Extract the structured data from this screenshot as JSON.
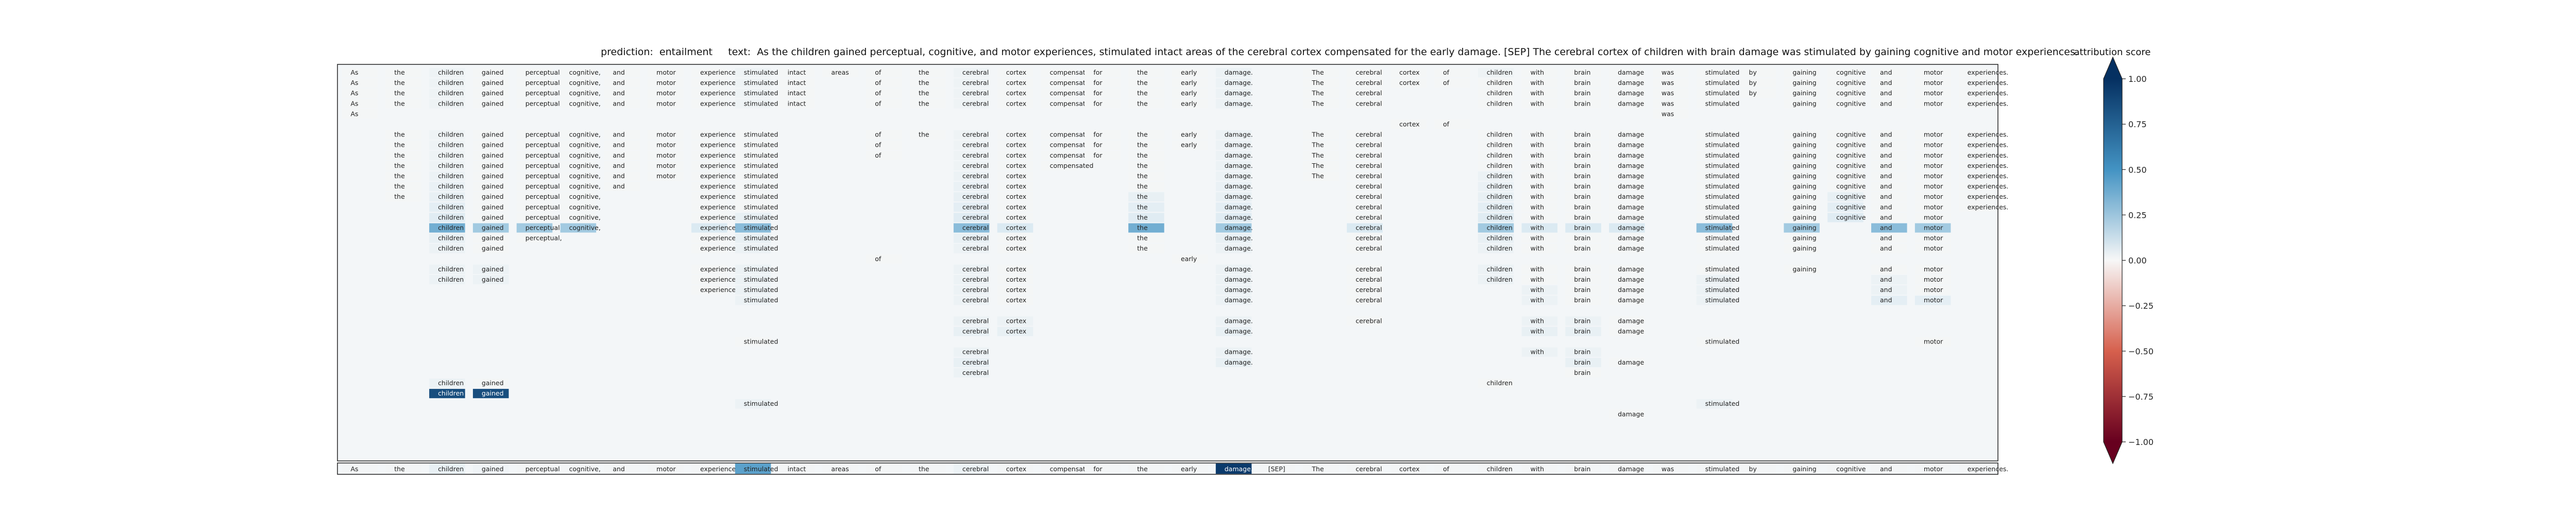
{
  "header": {
    "prediction": "prediction:  entailment",
    "text_prefix": "text:",
    "text": "As the children gained perceptual, cognitive, and motor experiences, stimulated intact areas of the cerebral cortex compensated for the early damage. [SEP] The cerebral cortex of children with brain damage was stimulated by gaining cognitive and motor experiences."
  },
  "colorbar": {
    "title": "attribution score",
    "ticks": [
      "1.00",
      "0.75",
      "0.50",
      "0.25",
      "0.00",
      "−0.25",
      "−0.50",
      "−0.75",
      "−1.00"
    ],
    "tick_values": [
      1.0,
      0.75,
      0.5,
      0.25,
      0.0,
      -0.25,
      -0.5,
      -0.75,
      -1.0
    ],
    "colors": {
      "positive": "#053061",
      "mid_pos": "#4393c3",
      "neutral": "#f7f7f7",
      "mid_neg": "#d6604d",
      "negative": "#67001f"
    }
  },
  "chart_data": {
    "type": "heatmap",
    "title": "prediction:  entailment     text:  As the children gained perceptual, cognitive, and motor experiences, stimulated intact areas of the cerebral cortex compensated for the early damage. [SEP] The cerebral cortex of children with brain damage was stimulated by gaining cognitive and motor experiences.",
    "tokens": [
      "As",
      "the",
      "children",
      "gained",
      "perceptual,",
      "cognitive,",
      "and",
      "motor",
      "experiences,",
      "stimulated",
      "intact",
      "areas",
      "of",
      "the",
      "cerebral",
      "cortex",
      "compensated",
      "for",
      "the",
      "early",
      "damage.",
      "[SEP]",
      "The",
      "cerebral",
      "cortex",
      "of",
      "children",
      "with",
      "brain",
      "damage",
      "was",
      "stimulated",
      "by",
      "gaining",
      "cognitive",
      "and",
      "motor",
      "experiences."
    ],
    "bottom_row_values": [
      0.02,
      0.02,
      0.08,
      0.04,
      0.02,
      0.02,
      0.02,
      0.02,
      0.02,
      0.45,
      0.02,
      0.02,
      0.02,
      0.02,
      0.06,
      0.02,
      0.02,
      0.02,
      0.02,
      0.02,
      0.95,
      0.02,
      0.02,
      0.02,
      0.02,
      0.02,
      0.02,
      0.02,
      0.02,
      0.02,
      0.02,
      0.02,
      0.02,
      0.02,
      0.02,
      0.02,
      0.02,
      0.02
    ],
    "rows": [
      {
        "t": [
          0,
          1,
          2,
          3,
          4,
          5,
          6,
          7,
          8,
          9,
          10,
          11,
          12,
          13,
          14,
          15,
          16,
          17,
          18,
          19,
          20,
          22,
          23,
          24,
          25,
          26,
          27,
          28,
          29,
          30,
          31,
          32,
          33,
          34,
          35,
          36,
          37
        ],
        "h": {
          "2": 0.05,
          "9": 0.05,
          "14": 0.05,
          "20": 0.06,
          "26": 0.05
        }
      },
      {
        "t": [
          0,
          1,
          2,
          3,
          4,
          5,
          6,
          7,
          8,
          9,
          10,
          12,
          13,
          14,
          15,
          16,
          17,
          18,
          19,
          20,
          22,
          23,
          24,
          25,
          26,
          27,
          28,
          29,
          30,
          31,
          32,
          33,
          34,
          35,
          36,
          37
        ],
        "h": {
          "2": 0.05,
          "9": 0.05,
          "14": 0.05,
          "20": 0.06
        }
      },
      {
        "t": [
          0,
          1,
          2,
          3,
          4,
          5,
          6,
          7,
          8,
          9,
          10,
          12,
          13,
          14,
          15,
          16,
          17,
          18,
          19,
          20,
          22,
          23,
          26,
          27,
          28,
          29,
          30,
          31,
          32,
          33,
          34,
          35,
          36,
          37
        ],
        "h": {
          "2": 0.05,
          "9": 0.05,
          "14": 0.05,
          "20": 0.06
        }
      },
      {
        "t": [
          0,
          1,
          2,
          3,
          4,
          5,
          6,
          7,
          8,
          9,
          10,
          12,
          13,
          14,
          15,
          16,
          17,
          18,
          19,
          20,
          22,
          23,
          26,
          27,
          28,
          29,
          30,
          31,
          33,
          34,
          35,
          36,
          37
        ],
        "h": {
          "2": 0.05,
          "9": 0.05,
          "14": 0.05,
          "20": 0.06
        }
      },
      {
        "t": [
          0,
          30
        ],
        "h": {}
      },
      {
        "t": [
          24,
          25
        ],
        "h": {}
      },
      {
        "t": [
          1,
          2,
          3,
          4,
          5,
          6,
          7,
          8,
          9,
          12,
          13,
          14,
          15,
          16,
          17,
          18,
          19,
          20,
          22,
          23,
          26,
          27,
          28,
          29,
          31,
          33,
          34,
          35,
          36,
          37
        ],
        "h": {
          "2": 0.05,
          "14": 0.05,
          "20": 0.06
        }
      },
      {
        "t": [
          1,
          2,
          3,
          4,
          5,
          6,
          7,
          8,
          9,
          12,
          14,
          15,
          16,
          17,
          18,
          19,
          20,
          22,
          23,
          26,
          27,
          28,
          29,
          31,
          33,
          34,
          35,
          36,
          37
        ],
        "h": {
          "2": 0.05,
          "14": 0.05,
          "20": 0.06
        }
      },
      {
        "t": [
          1,
          2,
          3,
          4,
          5,
          6,
          7,
          8,
          9,
          12,
          14,
          15,
          16,
          17,
          18,
          20,
          22,
          23,
          26,
          27,
          28,
          29,
          31,
          33,
          34,
          35,
          36,
          37
        ],
        "h": {
          "2": 0.05,
          "14": 0.05,
          "20": 0.06
        }
      },
      {
        "t": [
          1,
          2,
          3,
          4,
          5,
          6,
          7,
          8,
          9,
          14,
          15,
          16,
          18,
          20,
          22,
          23,
          26,
          27,
          28,
          29,
          31,
          33,
          34,
          35,
          36,
          37
        ],
        "h": {
          "2": 0.05,
          "14": 0.05,
          "20": 0.06
        }
      },
      {
        "t": [
          1,
          2,
          3,
          4,
          5,
          6,
          7,
          8,
          9,
          14,
          15,
          18,
          20,
          22,
          23,
          26,
          27,
          28,
          29,
          31,
          33,
          34,
          35,
          36,
          37
        ],
        "h": {
          "2": 0.06,
          "14": 0.06,
          "20": 0.06,
          "26": 0.06
        }
      },
      {
        "t": [
          1,
          2,
          3,
          4,
          5,
          6,
          8,
          9,
          14,
          15,
          18,
          20,
          23,
          26,
          27,
          28,
          29,
          31,
          33,
          34,
          35,
          36,
          37
        ],
        "h": {
          "2": 0.07,
          "14": 0.07,
          "20": 0.07,
          "26": 0.07
        }
      },
      {
        "t": [
          1,
          2,
          3,
          4,
          5,
          8,
          9,
          14,
          15,
          18,
          20,
          23,
          26,
          27,
          28,
          29,
          31,
          33,
          34,
          35,
          36,
          37
        ],
        "h": {
          "2": 0.08,
          "14": 0.08,
          "18": 0.08,
          "20": 0.08,
          "26": 0.08,
          "34": 0.08
        }
      },
      {
        "t": [
          2,
          3,
          4,
          5,
          8,
          9,
          14,
          15,
          18,
          20,
          23,
          26,
          27,
          28,
          29,
          31,
          33,
          34,
          35,
          36,
          37
        ],
        "h": {
          "2": 0.1,
          "14": 0.1,
          "18": 0.1,
          "20": 0.1,
          "26": 0.1,
          "34": 0.1
        }
      },
      {
        "t": [
          2,
          3,
          4,
          5,
          8,
          9,
          14,
          15,
          18,
          20,
          23,
          26,
          27,
          28,
          29,
          31,
          33,
          34,
          35,
          36
        ],
        "h": {
          "2": 0.12,
          "9": 0.08,
          "14": 0.12,
          "18": 0.12,
          "20": 0.12,
          "26": 0.12,
          "34": 0.12
        }
      },
      {
        "t": [
          2,
          3,
          4,
          5,
          8,
          9,
          14,
          15,
          18,
          20,
          23,
          26,
          27,
          28,
          29,
          31,
          33,
          35,
          36
        ],
        "h": {
          "2": 0.4,
          "3": 0.3,
          "4": 0.3,
          "5": 0.3,
          "8": 0.15,
          "9": 0.35,
          "14": 0.35,
          "15": 0.15,
          "18": 0.4,
          "20": 0.3,
          "23": 0.15,
          "26": 0.3,
          "27": 0.15,
          "28": 0.15,
          "29": 0.15,
          "31": 0.35,
          "33": 0.3,
          "35": 0.35,
          "36": 0.3
        }
      },
      {
        "t": [
          2,
          3,
          4,
          8,
          9,
          14,
          15,
          18,
          20,
          23,
          26,
          27,
          28,
          29,
          31,
          33,
          35,
          36
        ],
        "h": {
          "2": 0.08,
          "9": 0.08,
          "14": 0.08,
          "20": 0.08,
          "26": 0.08
        }
      },
      {
        "t": [
          2,
          3,
          8,
          9,
          14,
          15,
          18,
          20,
          23,
          26,
          27,
          28,
          29,
          31,
          33,
          35,
          36
        ],
        "h": {
          "2": 0.06,
          "9": 0.06,
          "14": 0.06,
          "20": 0.06,
          "26": 0.06
        }
      },
      {
        "t": [
          12,
          19
        ],
        "h": {}
      },
      {
        "t": [
          2,
          3,
          8,
          9,
          14,
          15,
          20,
          23,
          26,
          27,
          28,
          29,
          31,
          33,
          35,
          36
        ],
        "h": {
          "2": 0.06,
          "3": 0.06,
          "9": 0.06,
          "14": 0.06,
          "20": 0.06,
          "26": 0.06
        }
      },
      {
        "t": [
          2,
          3,
          8,
          9,
          14,
          15,
          20,
          23,
          26,
          27,
          28,
          29,
          31,
          35,
          36
        ],
        "h": {
          "2": 0.06,
          "3": 0.06,
          "9": 0.06,
          "14": 0.06,
          "20": 0.06,
          "26": 0.06,
          "31": 0.06,
          "35": 0.06
        }
      },
      {
        "t": [
          8,
          9,
          14,
          15,
          20,
          23,
          27,
          28,
          29,
          31,
          35,
          36
        ],
        "h": {
          "9": 0.06,
          "14": 0.06,
          "20": 0.06,
          "27": 0.06,
          "31": 0.06,
          "35": 0.06
        }
      },
      {
        "t": [
          9,
          14,
          15,
          20,
          23,
          27,
          28,
          29,
          31,
          35,
          36
        ],
        "h": {
          "9": 0.06,
          "14": 0.06,
          "20": 0.06,
          "27": 0.06,
          "31": 0.06,
          "35": 0.1,
          "36": 0.1
        }
      },
      {
        "t": [],
        "h": {}
      },
      {
        "t": [
          14,
          15,
          20,
          23,
          27,
          28,
          29
        ],
        "h": {
          "14": 0.06,
          "15": 0.06,
          "20": 0.06,
          "27": 0.06,
          "28": 0.06
        }
      },
      {
        "t": [
          14,
          15,
          20,
          27,
          28,
          29
        ],
        "h": {
          "14": 0.08,
          "15": 0.08,
          "20": 0.08,
          "27": 0.08,
          "28": 0.08
        }
      },
      {
        "t": [
          9,
          31,
          36
        ],
        "h": {}
      },
      {
        "t": [
          14,
          20,
          27,
          28
        ],
        "h": {
          "14": 0.06,
          "20": 0.06,
          "27": 0.06,
          "28": 0.06
        }
      },
      {
        "t": [
          14,
          20,
          28,
          29
        ],
        "h": {
          "14": 0.08,
          "20": 0.08,
          "28": 0.08
        }
      },
      {
        "t": [
          14,
          28
        ],
        "h": {
          "14": 0.06
        }
      },
      {
        "t": [
          2,
          3,
          26
        ],
        "h": {
          "2": 0.06
        }
      },
      {
        "t": [
          2,
          3
        ],
        "h": {
          "2": 0.85,
          "3": 0.85
        }
      },
      {
        "t": [
          9,
          31
        ],
        "h": {
          "9": 0.06,
          "31": 0.06
        }
      },
      {
        "t": [
          29
        ],
        "h": {}
      }
    ]
  }
}
